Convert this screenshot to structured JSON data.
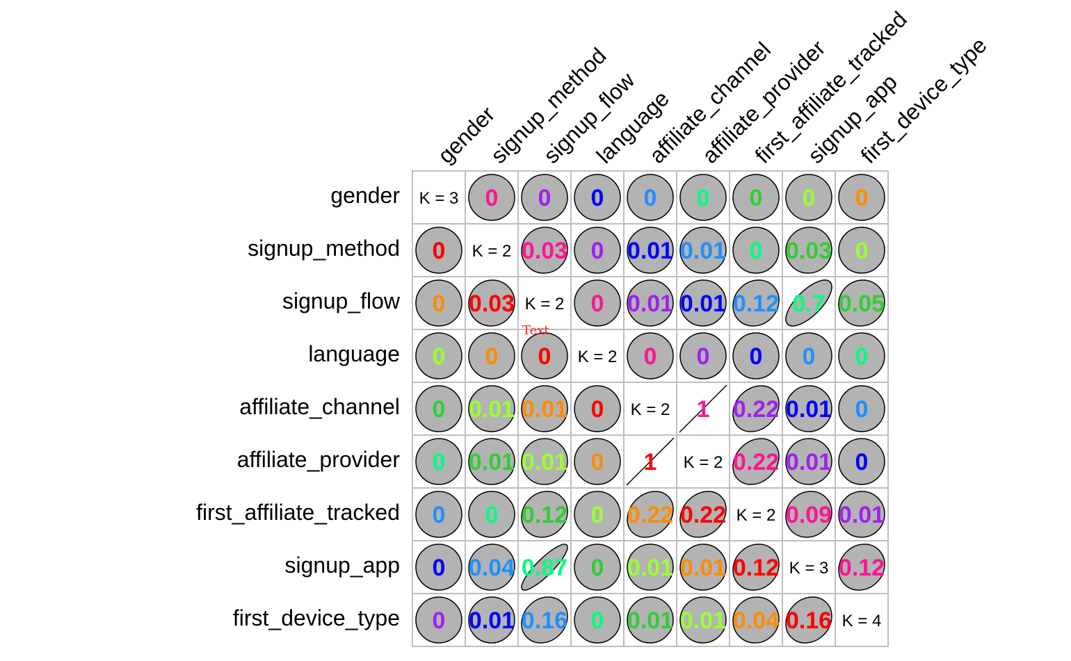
{
  "chart_data": {
    "type": "heatmap",
    "variables": [
      "gender",
      "signup_method",
      "signup_flow",
      "language",
      "affiliate_channel",
      "affiliate_provider",
      "first_affiliate_tracked",
      "signup_app",
      "first_device_type"
    ],
    "diagonal_labels": [
      "K = 3",
      "K = 2",
      "K = 2",
      "K = 2",
      "K = 2",
      "K = 2",
      "K = 2",
      "K = 3",
      "K = 4"
    ],
    "value_labels": [
      [
        "",
        "0",
        "0",
        "0",
        "0",
        "0",
        "0",
        "0",
        "0"
      ],
      [
        "0",
        "",
        "0.03",
        "0",
        "0.01",
        "0.01",
        "0",
        "0.03",
        "0"
      ],
      [
        "0",
        "0.03",
        "",
        "0",
        "0.01",
        "0.01",
        "0.12",
        "0.7",
        "0.05"
      ],
      [
        "0",
        "0",
        "0",
        "",
        "0",
        "0",
        "0",
        "0",
        "0"
      ],
      [
        "0",
        "0.01",
        "0.01",
        "0",
        "",
        "1",
        "0.22",
        "0.01",
        "0"
      ],
      [
        "0",
        "0.01",
        "0.01",
        "0",
        "1",
        "",
        "0.22",
        "0.01",
        "0"
      ],
      [
        "0",
        "0",
        "0.12",
        "0",
        "0.22",
        "0.22",
        "",
        "0.09",
        "0.01"
      ],
      [
        "0",
        "0.04",
        "0.87",
        "0",
        "0.01",
        "0.01",
        "0.12",
        "",
        "0.12"
      ],
      [
        "0",
        "0.01",
        "0.16",
        "0",
        "0.01",
        "0.01",
        "0.04",
        "0.16",
        ""
      ]
    ],
    "value_colors": [
      [
        "",
        "#ff1493",
        "#a020f0",
        "#0000ff",
        "#1e90ff",
        "#00ff7f",
        "#32cd32",
        "#9aff32",
        "#ff8c00"
      ],
      [
        "#ff0000",
        "",
        "#ff1493",
        "#a020f0",
        "#0000ff",
        "#1e90ff",
        "#00ff7f",
        "#32cd32",
        "#9aff32"
      ],
      [
        "#ff8c00",
        "#ff0000",
        "",
        "#ff1493",
        "#a020f0",
        "#0000ff",
        "#1e90ff",
        "#00ff7f",
        "#32cd32"
      ],
      [
        "#9aff32",
        "#ff8c00",
        "#ff0000",
        "",
        "#ff1493",
        "#a020f0",
        "#0000ff",
        "#1e90ff",
        "#00ff7f"
      ],
      [
        "#32cd32",
        "#9aff32",
        "#ff8c00",
        "#ff0000",
        "",
        "#ff1493",
        "#a020f0",
        "#0000ff",
        "#1e90ff"
      ],
      [
        "#00ff7f",
        "#32cd32",
        "#9aff32",
        "#ff8c00",
        "#ff0000",
        "",
        "#ff1493",
        "#a020f0",
        "#0000ff"
      ],
      [
        "#1e90ff",
        "#00ff7f",
        "#32cd32",
        "#9aff32",
        "#ff8c00",
        "#ff0000",
        "",
        "#ff1493",
        "#a020f0"
      ],
      [
        "#0000ff",
        "#1e90ff",
        "#00ff7f",
        "#32cd32",
        "#9aff32",
        "#ff8c00",
        "#ff0000",
        "",
        "#ff1493"
      ],
      [
        "#a020f0",
        "#0000ff",
        "#1e90ff",
        "#00ff7f",
        "#32cd32",
        "#9aff32",
        "#ff8c00",
        "#ff0000",
        ""
      ]
    ],
    "ellipse_fill": "#b3b3b3",
    "grid_color": "#bebebe",
    "annotation": "Text",
    "annotation_color": "#ff2222",
    "grid": true
  }
}
